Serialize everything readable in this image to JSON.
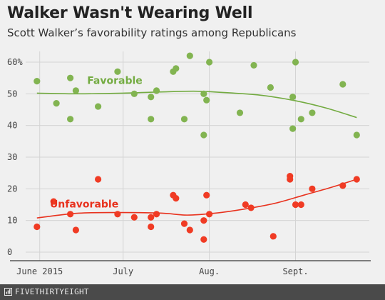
{
  "header": {
    "title": "Walker Wasn't Wearing Well",
    "subtitle": "Scott Walker’s favorability ratings among Republicans"
  },
  "footer": {
    "brand": "FIVETHIRTYEIGHT",
    "logo_icon": "fivethirtyeight-logo-icon"
  },
  "colors": {
    "favorable": "#82b451",
    "favorable_line": "#73ab41",
    "unfavorable": "#f03b24",
    "unfavorable_line": "#e8321e",
    "grid": "#d4d4d4",
    "axis": "#555555",
    "tick_text": "#444444",
    "background": "#f0f0f0"
  },
  "chart_data": {
    "type": "scatter",
    "title": "Walker Wasn't Wearing Well",
    "subtitle": "Scott Walker’s favorability ratings among Republicans",
    "xlabel": "",
    "ylabel": "",
    "x_unit": "date",
    "x_range": [
      "2015-05-29",
      "2015-09-26"
    ],
    "ylim": [
      0,
      62
    ],
    "y_ticks": [
      0,
      10,
      20,
      30,
      40,
      50,
      60
    ],
    "y_tick_labels": [
      "0",
      "10",
      "20",
      "30",
      "40",
      "50",
      "60%"
    ],
    "x_ticks": [
      {
        "date": "2015-06-01",
        "label": "June 2015"
      },
      {
        "date": "2015-07-01",
        "label": "July"
      },
      {
        "date": "2015-08-01",
        "label": "Aug."
      },
      {
        "date": "2015-09-01",
        "label": "Sept."
      }
    ],
    "grid": true,
    "legend": "inline labels",
    "series": [
      {
        "name": "Favorable",
        "label_at": {
          "date": "2015-06-28",
          "y": 54
        },
        "points": [
          {
            "x": "2015-05-31",
            "y": 54
          },
          {
            "x": "2015-06-07",
            "y": 47
          },
          {
            "x": "2015-06-12",
            "y": 42
          },
          {
            "x": "2015-06-12",
            "y": 55
          },
          {
            "x": "2015-06-14",
            "y": 51
          },
          {
            "x": "2015-06-22",
            "y": 46
          },
          {
            "x": "2015-06-29",
            "y": 57
          },
          {
            "x": "2015-07-05",
            "y": 50
          },
          {
            "x": "2015-07-11",
            "y": 49
          },
          {
            "x": "2015-07-11",
            "y": 42
          },
          {
            "x": "2015-07-13",
            "y": 51
          },
          {
            "x": "2015-07-19",
            "y": 57
          },
          {
            "x": "2015-07-20",
            "y": 58
          },
          {
            "x": "2015-07-23",
            "y": 42
          },
          {
            "x": "2015-07-25",
            "y": 62
          },
          {
            "x": "2015-07-30",
            "y": 37
          },
          {
            "x": "2015-07-30",
            "y": 50
          },
          {
            "x": "2015-07-31",
            "y": 48
          },
          {
            "x": "2015-08-01",
            "y": 60
          },
          {
            "x": "2015-08-12",
            "y": 44
          },
          {
            "x": "2015-08-17",
            "y": 59
          },
          {
            "x": "2015-08-23",
            "y": 52
          },
          {
            "x": "2015-08-31",
            "y": 49
          },
          {
            "x": "2015-08-31",
            "y": 39
          },
          {
            "x": "2015-09-01",
            "y": 60
          },
          {
            "x": "2015-09-03",
            "y": 42
          },
          {
            "x": "2015-09-07",
            "y": 44
          },
          {
            "x": "2015-09-18",
            "y": 53
          },
          {
            "x": "2015-09-23",
            "y": 37
          }
        ],
        "trend": [
          {
            "x": "2015-05-31",
            "y": 50.2
          },
          {
            "x": "2015-06-15",
            "y": 50.0
          },
          {
            "x": "2015-07-01",
            "y": 50.2
          },
          {
            "x": "2015-07-15",
            "y": 50.6
          },
          {
            "x": "2015-07-28",
            "y": 50.8
          },
          {
            "x": "2015-08-10",
            "y": 50.2
          },
          {
            "x": "2015-08-20",
            "y": 49.5
          },
          {
            "x": "2015-09-01",
            "y": 47.8
          },
          {
            "x": "2015-09-12",
            "y": 45.5
          },
          {
            "x": "2015-09-23",
            "y": 42.5
          }
        ]
      },
      {
        "name": "Unfavorable",
        "label_at": {
          "date": "2015-06-17",
          "y": 15
        },
        "points": [
          {
            "x": "2015-05-31",
            "y": 8
          },
          {
            "x": "2015-06-06",
            "y": 16
          },
          {
            "x": "2015-06-12",
            "y": 12
          },
          {
            "x": "2015-06-14",
            "y": 7
          },
          {
            "x": "2015-06-22",
            "y": 23
          },
          {
            "x": "2015-06-29",
            "y": 12
          },
          {
            "x": "2015-07-05",
            "y": 11
          },
          {
            "x": "2015-07-11",
            "y": 11
          },
          {
            "x": "2015-07-11",
            "y": 8
          },
          {
            "x": "2015-07-13",
            "y": 12
          },
          {
            "x": "2015-07-19",
            "y": 18
          },
          {
            "x": "2015-07-20",
            "y": 17
          },
          {
            "x": "2015-07-23",
            "y": 9
          },
          {
            "x": "2015-07-25",
            "y": 7
          },
          {
            "x": "2015-07-30",
            "y": 10
          },
          {
            "x": "2015-07-30",
            "y": 4
          },
          {
            "x": "2015-07-31",
            "y": 18
          },
          {
            "x": "2015-08-01",
            "y": 12
          },
          {
            "x": "2015-08-14",
            "y": 15
          },
          {
            "x": "2015-08-16",
            "y": 14
          },
          {
            "x": "2015-08-24",
            "y": 5
          },
          {
            "x": "2015-08-30",
            "y": 24
          },
          {
            "x": "2015-08-30",
            "y": 23
          },
          {
            "x": "2015-09-01",
            "y": 15
          },
          {
            "x": "2015-09-03",
            "y": 15
          },
          {
            "x": "2015-09-07",
            "y": 20
          },
          {
            "x": "2015-09-18",
            "y": 21
          },
          {
            "x": "2015-09-23",
            "y": 23
          }
        ],
        "trend": [
          {
            "x": "2015-05-31",
            "y": 10.8
          },
          {
            "x": "2015-06-15",
            "y": 12.3
          },
          {
            "x": "2015-07-01",
            "y": 12.5
          },
          {
            "x": "2015-07-15",
            "y": 12.3
          },
          {
            "x": "2015-07-24",
            "y": 11.7
          },
          {
            "x": "2015-08-03",
            "y": 12.3
          },
          {
            "x": "2015-08-15",
            "y": 13.8
          },
          {
            "x": "2015-08-25",
            "y": 15.5
          },
          {
            "x": "2015-09-04",
            "y": 18.0
          },
          {
            "x": "2015-09-14",
            "y": 20.5
          },
          {
            "x": "2015-09-23",
            "y": 23.0
          }
        ]
      }
    ]
  }
}
